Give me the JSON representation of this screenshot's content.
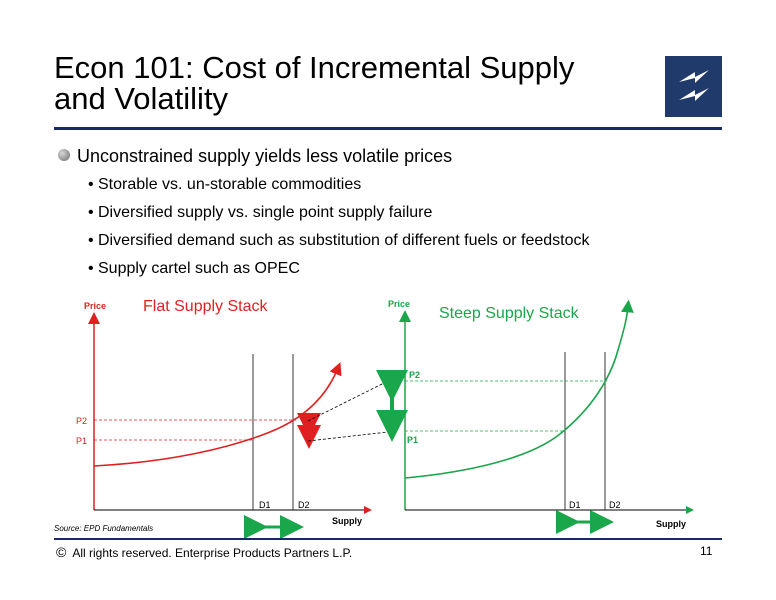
{
  "slide": {
    "title_line1": "Econ 101:  Cost of Incremental Supply",
    "title_line2": "and Volatility",
    "logo": "lightning-bolt-logo"
  },
  "bullets": {
    "main": "Unconstrained supply yields less volatile prices",
    "items": [
      "Storable vs. un-storable commodities",
      "Diversified supply vs. single point supply failure",
      "Diversified demand such as substitution of different fuels or feedstock",
      "Supply cartel such as OPEC"
    ]
  },
  "diagram": {
    "left": {
      "title": "Flat Supply Stack",
      "y_axis": "Price",
      "x_axis": "Supply",
      "p1": "P1",
      "p2": "P2",
      "d1": "D1",
      "d2": "D2",
      "color": "#e02020"
    },
    "right": {
      "title": "Steep Supply Stack",
      "y_axis": "Price",
      "x_axis": "Supply",
      "p1": "P1",
      "p2": "P2",
      "d1": "D1",
      "d2": "D2",
      "color": "#1aa64a"
    },
    "arrow_color": "#1aa64a"
  },
  "footer": {
    "source": "Source:  EPD Fundamentals",
    "copyright_symbol": "©",
    "copyright": "All rights reserved. Enterprise Products Partners L.P.",
    "page_number": "11"
  }
}
